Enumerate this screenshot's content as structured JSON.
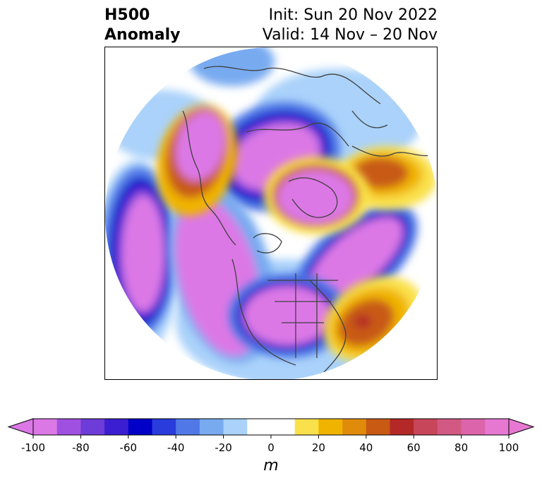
{
  "title": {
    "left_line1": "H500",
    "left_line2": "Anomaly",
    "right_line1": "Init: Sun 20 Nov 2022",
    "right_line2": "Valid: 14 Nov – 20 Nov"
  },
  "colorbar": {
    "units": "m",
    "ticks": [
      {
        "value": -100,
        "label": "-100"
      },
      {
        "value": -80,
        "label": "-80"
      },
      {
        "value": -60,
        "label": "-60"
      },
      {
        "value": -40,
        "label": "-40"
      },
      {
        "value": -20,
        "label": "-20"
      },
      {
        "value": 0,
        "label": "0"
      },
      {
        "value": 20,
        "label": "20"
      },
      {
        "value": 40,
        "label": "40"
      },
      {
        "value": 60,
        "label": "60"
      },
      {
        "value": 80,
        "label": "80"
      },
      {
        "value": 100,
        "label": "100"
      }
    ],
    "levels": [
      -100,
      -90,
      -80,
      -70,
      -60,
      -50,
      -40,
      -30,
      -20,
      -10,
      10,
      20,
      30,
      40,
      50,
      60,
      70,
      80,
      90,
      100
    ],
    "colors": [
      "#dc78e6",
      "#a050e0",
      "#6e3cd8",
      "#3c1ed2",
      "#0000c8",
      "#2a3cdc",
      "#5078e6",
      "#78aaf0",
      "#aad2fa",
      "#ffffff",
      "#fae14b",
      "#f0b400",
      "#e08c0a",
      "#c85a14",
      "#b42828",
      "#c8465a",
      "#d25a82",
      "#dc64aa",
      "#e678d2"
    ],
    "under_color": "#dc78e6",
    "over_color": "#e678d2"
  }
}
